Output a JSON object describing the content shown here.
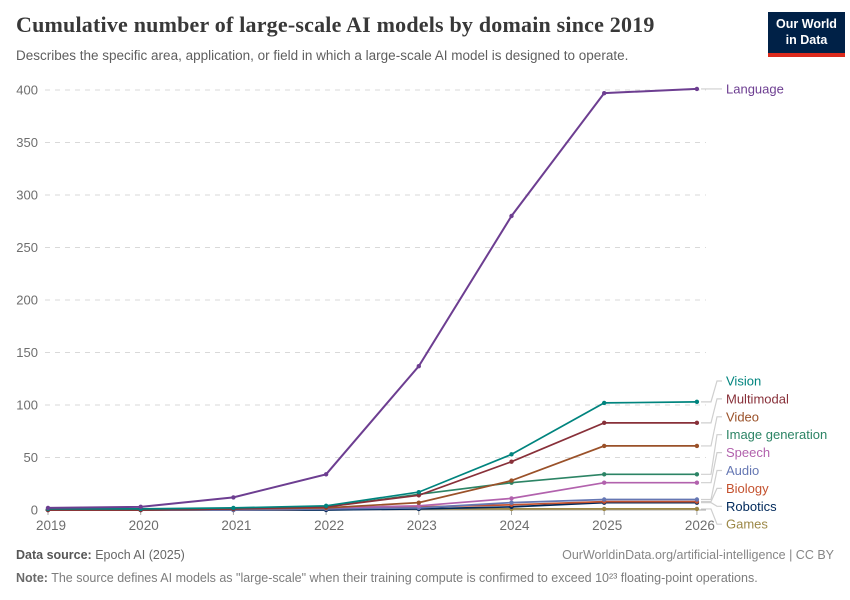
{
  "header": {
    "title": "Cumulative number of large-scale AI models by domain since 2019",
    "subtitle": "Describes the specific area, application, or field in which a large-scale AI model is designed to operate.",
    "logo_line1": "Our World",
    "logo_line2": "in Data"
  },
  "chart_data": {
    "type": "line",
    "title": "Cumulative number of large-scale AI models by domain since 2019",
    "x": [
      2019,
      2020,
      2021,
      2022,
      2023,
      2024,
      2025,
      2026
    ],
    "series": [
      {
        "name": "Language",
        "color": "#6D3E91",
        "values": [
          2,
          3,
          12,
          34,
          137,
          280,
          397,
          401
        ]
      },
      {
        "name": "Vision",
        "color": "#00847E",
        "values": [
          1,
          1,
          2,
          4,
          17,
          53,
          102,
          103
        ]
      },
      {
        "name": "Multimodal",
        "color": "#883039",
        "values": [
          0,
          0,
          1,
          3,
          14,
          46,
          83,
          83
        ]
      },
      {
        "name": "Video",
        "color": "#9A5129",
        "values": [
          0,
          0,
          1,
          2,
          7,
          28,
          61,
          61
        ]
      },
      {
        "name": "Image generation",
        "color": "#2C8465",
        "values": [
          0,
          0,
          1,
          3,
          15,
          26,
          34,
          34
        ]
      },
      {
        "name": "Speech",
        "color": "#B262AD",
        "values": [
          0,
          0,
          1,
          2,
          4,
          11,
          26,
          26
        ]
      },
      {
        "name": "Audio",
        "color": "#6577B3",
        "values": [
          0,
          0,
          0,
          1,
          2,
          7,
          10,
          10
        ]
      },
      {
        "name": "Biology",
        "color": "#C4522F",
        "values": [
          0,
          0,
          0,
          1,
          3,
          5,
          8,
          8
        ]
      },
      {
        "name": "Robotics",
        "color": "#00295B",
        "values": [
          0,
          0,
          0,
          0,
          1,
          3,
          7,
          7
        ]
      },
      {
        "name": "Games",
        "color": "#9C8847",
        "values": [
          0,
          0,
          1,
          1,
          1,
          1,
          1,
          1
        ]
      }
    ],
    "yticks": [
      0,
      50,
      100,
      150,
      200,
      250,
      300,
      350,
      400
    ],
    "ylim": [
      0,
      400
    ],
    "xlabel": "",
    "ylabel": "",
    "grid": "horizontal-dashed",
    "legend_position": "right-of-line-ends"
  },
  "footer": {
    "source_label": "Data source:",
    "source_value": " Epoch AI (2025)",
    "attribution": "OurWorldinData.org/artificial-intelligence | CC BY",
    "note_label": "Note:",
    "note_value": " The source defines AI models as \"large-scale\" when their training compute is confirmed to exceed 10²³ floating-point operations."
  },
  "colors": {
    "logo_bg": "#002147",
    "logo_stripe": "#dc2a1c",
    "grid": "#d9d9d9",
    "axis": "#a8a8a8",
    "tick_text": "#6e6e6e",
    "connector": "#cfcfcf"
  }
}
